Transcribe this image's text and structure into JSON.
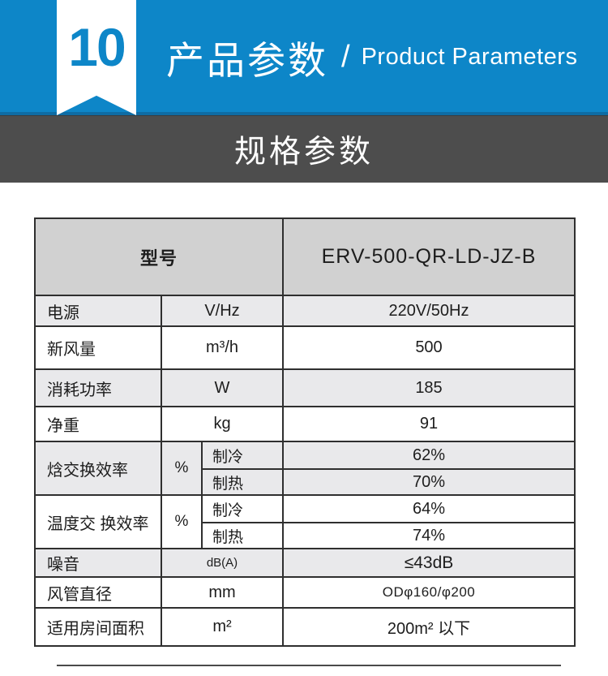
{
  "header": {
    "section_number": "10",
    "title_cn": "产品参数",
    "separator": "/",
    "title_en": "Product Parameters"
  },
  "subtitle_band": {
    "text": "规格参数"
  },
  "colors": {
    "brand_blue": "#0d86c8",
    "blue_edge": "#0e6ca4",
    "dark_band": "#4d4d4d",
    "header_cell_bg": "#d1d1d1",
    "row_shade_bg": "#e9e9eb",
    "border": "#2f2f2f"
  },
  "table": {
    "header": {
      "label": "型号",
      "value": "ERV-500-QR-LD-JZ-B"
    },
    "rows_top": [
      {
        "label": "电源",
        "unit": "V/Hz",
        "value": "220V/50Hz"
      },
      {
        "label": "新风量",
        "unit": "m³/h",
        "value": "500"
      },
      {
        "label": "消耗功率",
        "unit": "W",
        "value": "185"
      },
      {
        "label": "净重",
        "unit": "kg",
        "value": "91"
      }
    ],
    "efficiency_rows": [
      {
        "label": "焓交换效率",
        "unit": "%",
        "sub": [
          {
            "mode": "制冷",
            "value": "62%"
          },
          {
            "mode": "制热",
            "value": "70%"
          }
        ]
      },
      {
        "label": "温度交 换效率",
        "unit": "%",
        "sub": [
          {
            "mode": "制冷",
            "value": "64%"
          },
          {
            "mode": "制热",
            "value": "74%"
          }
        ]
      }
    ],
    "rows_bottom": [
      {
        "label": "噪音",
        "unit": "dB(A)",
        "value": "≤43dB"
      },
      {
        "label": "风管直径",
        "unit": "mm",
        "value": "ODφ160/φ200"
      },
      {
        "label": "适用房间面积",
        "unit": "m²",
        "value": "200m² 以下"
      }
    ]
  }
}
